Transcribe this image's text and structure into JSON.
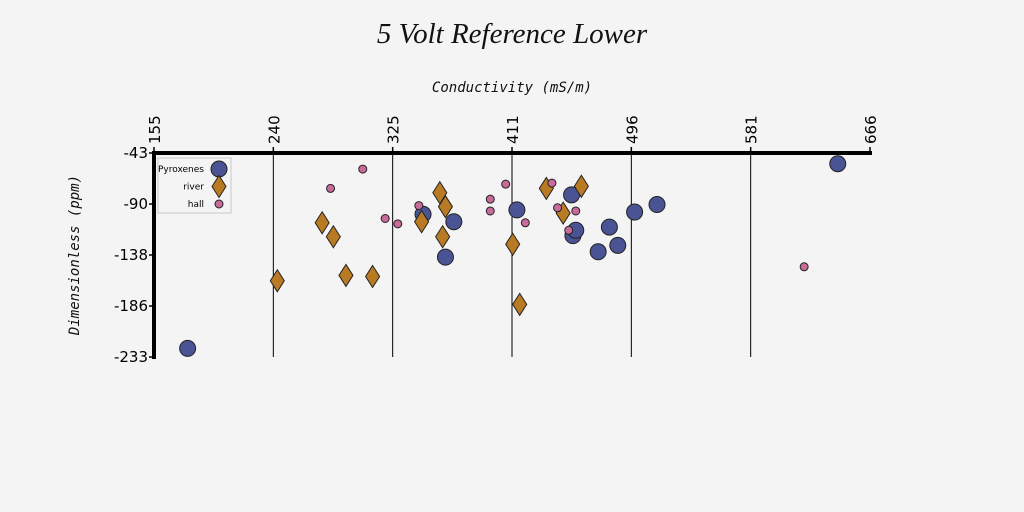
{
  "chart_data": {
    "type": "scatter",
    "title": "5 Volt Reference Lower",
    "xlabel": "Conductivity (mS/m)",
    "ylabel": "Dimensionless (ppm)",
    "xlim": [
      155,
      666
    ],
    "ylim": [
      -233,
      -43
    ],
    "x_ticks": [
      "155",
      "240",
      "325",
      "411",
      "496",
      "581",
      "666"
    ],
    "y_ticks": [
      "-43",
      "-90",
      "-138",
      "-186",
      "-233"
    ],
    "x_axis_position": "top",
    "grid": "vertical",
    "legend_position": "top-left",
    "series": [
      {
        "name": "Pyroxenes",
        "marker": "circle",
        "color": "#4a5494",
        "points": [
          [
            179,
            -225
          ],
          [
            347,
            -100
          ],
          [
            363,
            -140
          ],
          [
            369,
            -107
          ],
          [
            414,
            -96
          ],
          [
            453,
            -82
          ],
          [
            454,
            -120
          ],
          [
            456,
            -115
          ],
          [
            472,
            -135
          ],
          [
            480,
            -112
          ],
          [
            486,
            -129
          ],
          [
            498,
            -98
          ],
          [
            514,
            -91
          ],
          [
            643,
            -53
          ]
        ]
      },
      {
        "name": "river",
        "marker": "diamond",
        "color": "#b87a22",
        "points": [
          [
            243,
            -162
          ],
          [
            275,
            -108
          ],
          [
            283,
            -121
          ],
          [
            292,
            -157
          ],
          [
            311,
            -158
          ],
          [
            346,
            -107
          ],
          [
            359,
            -80
          ],
          [
            361,
            -121
          ],
          [
            363,
            -93
          ],
          [
            411,
            -128
          ],
          [
            416,
            -184
          ],
          [
            435,
            -76
          ],
          [
            447,
            -99
          ],
          [
            460,
            -74
          ]
        ]
      },
      {
        "name": "hall",
        "marker": "circle-small",
        "color": "#c86a9a",
        "points": [
          [
            281,
            -76
          ],
          [
            304,
            -58
          ],
          [
            320,
            -104
          ],
          [
            329,
            -109
          ],
          [
            344,
            -92
          ],
          [
            395,
            -86
          ],
          [
            395,
            -97
          ],
          [
            406,
            -72
          ],
          [
            420,
            -108
          ],
          [
            439,
            -71
          ],
          [
            443,
            -94
          ],
          [
            451,
            -115
          ],
          [
            456,
            -97
          ],
          [
            619,
            -149
          ]
        ]
      }
    ]
  }
}
